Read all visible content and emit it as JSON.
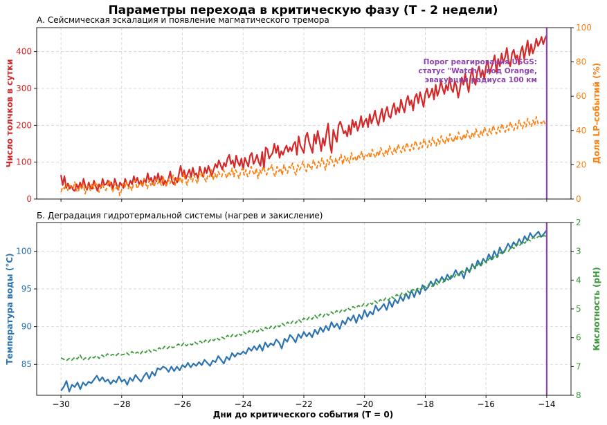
{
  "title": "Параметры перехода в критическую фазу (T - 2 недели)",
  "xlabel": "Дни до критического события (T = 0)",
  "x_ticks": [
    -30,
    -28,
    -26,
    -24,
    -22,
    -20,
    -18,
    -16,
    -14
  ],
  "threshold_x": -14,
  "threshold_color": "#8e44ad",
  "chart_data": [
    {
      "type": "line",
      "title": "А. Сейсмическая эскалация и появление магматического тремора",
      "xlim": [
        -30.8,
        -13.2
      ],
      "x_start": -30,
      "x_end": -14,
      "left_axis": {
        "label": "Число толчков в сутки",
        "color": "#d62728",
        "ylim": [
          0,
          465
        ],
        "ticks": [
          0,
          100,
          200,
          300,
          400
        ]
      },
      "right_axis": {
        "label": "Доля LP-событий (%)",
        "color": "#ff7f0e",
        "ylim": [
          0,
          100
        ],
        "ticks": [
          0,
          20,
          40,
          60,
          80,
          100
        ]
      },
      "series": [
        {
          "axis": "left",
          "color": "#d62728",
          "dashed": false,
          "values": [
            65,
            38,
            62,
            30,
            42,
            28,
            35,
            25,
            22,
            40,
            28,
            45,
            30,
            55,
            35,
            25,
            45,
            30,
            28,
            50,
            35,
            22,
            40,
            30,
            55,
            38,
            40,
            50,
            35,
            45,
            28,
            55,
            40,
            25,
            45,
            38,
            30,
            55,
            42,
            35,
            50,
            40,
            62,
            45,
            58,
            40,
            50,
            35,
            55,
            45,
            70,
            48,
            58,
            40,
            62,
            48,
            70,
            45,
            62,
            38,
            50,
            42,
            55,
            75,
            48,
            40,
            58,
            45,
            68,
            90,
            62,
            78,
            55,
            68,
            80,
            60,
            85,
            65,
            70,
            55,
            88,
            72,
            60,
            85,
            70,
            90,
            75,
            62,
            80,
            95,
            85,
            105,
            92,
            80,
            98,
            88,
            110,
            120,
            95,
            105,
            85,
            118,
            100,
            90,
            110,
            80,
            112,
            100,
            88,
            118,
            125,
            95,
            105,
            120,
            100,
            90,
            128,
            82,
            140,
            135,
            110,
            118,
            125,
            150,
            125,
            145,
            112,
            130,
            120,
            135,
            145,
            128,
            140,
            130,
            148,
            155,
            120,
            170,
            145,
            135,
            125,
            168,
            180,
            155,
            140,
            125,
            175,
            150,
            185,
            160,
            130,
            165,
            145,
            178,
            205,
            150,
            125,
            188,
            170,
            155,
            200,
            210,
            195,
            178,
            185,
            170,
            200,
            175,
            215,
            195,
            210,
            185,
            200,
            225,
            195,
            210,
            218,
            195,
            230,
            205,
            220,
            240,
            215,
            200,
            225,
            245,
            210,
            235,
            250,
            225,
            220,
            245,
            260,
            230,
            248,
            235,
            270,
            250,
            235,
            265,
            280,
            255,
            268,
            240,
            275,
            285,
            260,
            290,
            270,
            250,
            285,
            300,
            275,
            285,
            300,
            270,
            310,
            280,
            295,
            320,
            300,
            285,
            310,
            295,
            330,
            300,
            290,
            320,
            305,
            275,
            300,
            330,
            310,
            340,
            315,
            290,
            330,
            355,
            320,
            310,
            345,
            360,
            330,
            350,
            325,
            360,
            375,
            340,
            355,
            370,
            390,
            345,
            380,
            360,
            395,
            370,
            385,
            410,
            375,
            360,
            395,
            405,
            380,
            390,
            365,
            400,
            415,
            380,
            405,
            430,
            390,
            420,
            395,
            410,
            435,
            415,
            425,
            440,
            420,
            435,
            445
          ]
        },
        {
          "axis": "right",
          "color": "#ff7f0e",
          "dashed": true,
          "values": [
            4,
            7,
            6,
            9,
            5,
            8,
            7,
            6,
            10,
            5,
            4,
            8,
            6,
            9,
            3,
            7,
            8,
            5,
            9,
            6,
            10,
            8,
            4,
            7,
            9,
            6,
            5,
            8,
            11,
            7,
            4,
            9,
            6,
            8,
            2,
            5,
            9,
            7,
            10,
            6,
            8,
            5,
            9,
            11,
            6,
            8,
            10,
            7,
            12,
            9,
            6,
            11,
            8,
            10,
            7,
            12,
            9,
            11,
            8,
            13,
            10,
            7,
            12,
            9,
            11,
            14,
            8,
            12,
            10,
            13,
            9,
            15,
            11,
            8,
            13,
            12,
            10,
            14,
            11,
            9,
            15,
            13,
            16,
            12,
            10,
            14,
            13,
            17,
            11,
            15,
            12,
            16,
            14,
            13,
            17,
            15,
            12,
            16,
            14,
            18,
            13,
            17,
            15,
            12,
            16,
            18,
            14,
            17,
            13,
            15,
            19,
            16,
            14,
            18,
            12,
            17,
            15,
            19,
            16,
            14,
            18,
            17,
            20,
            15,
            13,
            19,
            16,
            18,
            14,
            20,
            17,
            15,
            19,
            18,
            21,
            16,
            14,
            20,
            17,
            19,
            22,
            18,
            16,
            21,
            19,
            17,
            23,
            20,
            18,
            22,
            19,
            24,
            21,
            17,
            23,
            20,
            25,
            22,
            19,
            24,
            21,
            23,
            26,
            20,
            25,
            22,
            24,
            21,
            27,
            23,
            25,
            22,
            26,
            24,
            28,
            23,
            26,
            25,
            27,
            24,
            29,
            26,
            24,
            28,
            25,
            30,
            27,
            25,
            29,
            26,
            31,
            28,
            26,
            30,
            27,
            32,
            29,
            27,
            31,
            28,
            33,
            30,
            28,
            32,
            29,
            34,
            31,
            29,
            33,
            30,
            35,
            32,
            30,
            34,
            31,
            36,
            33,
            31,
            35,
            32,
            37,
            34,
            32,
            36,
            33,
            38,
            35,
            33,
            37,
            34,
            39,
            36,
            34,
            38,
            35,
            40,
            37,
            35,
            39,
            36,
            41,
            38,
            36,
            40,
            37,
            42,
            39,
            37,
            41,
            38,
            43,
            40,
            38,
            42,
            39,
            44,
            41,
            39,
            43,
            40,
            45,
            42,
            40,
            44,
            41,
            46,
            43,
            41,
            45,
            42,
            47,
            44,
            42,
            46,
            43,
            48,
            44,
            45,
            44,
            46,
            44,
            45
          ]
        }
      ],
      "annotation": [
        "Порог реагирования USGS:",
        "статус \"Watch\", код Orange,",
        "эвакуация радиуса 100 км"
      ]
    },
    {
      "type": "line",
      "title": "Б. Деградация гидротермальной системы (нагрев и закисление)",
      "xlim": [
        -30.8,
        -13.2
      ],
      "x_start": -30,
      "x_end": -14,
      "left_axis": {
        "label": "Температура воды (°С)",
        "color": "#2b73b0",
        "ylim": [
          80.9,
          103.8
        ],
        "ticks": [
          85,
          90,
          95,
          100
        ]
      },
      "right_axis": {
        "label": "Кислотность (pH)",
        "color": "#3a9a3a",
        "ylim": [
          8,
          2
        ],
        "inverted": true,
        "ticks": [
          2,
          3,
          4,
          5,
          6,
          7,
          8
        ]
      },
      "series": [
        {
          "axis": "left",
          "color": "#2b73b0",
          "dashed": false,
          "values": [
            81.5,
            82.0,
            82.8,
            81.4,
            82.3,
            82.0,
            82.6,
            81.7,
            82.6,
            82.2,
            82.7,
            82.5,
            83.0,
            83.5,
            82.8,
            83.3,
            82.7,
            83.0,
            82.4,
            82.9,
            82.6,
            83.4,
            82.7,
            83.0,
            82.3,
            83.2,
            82.8,
            83.6,
            83.1,
            82.7,
            83.4,
            83.9,
            83.1,
            84.0,
            83.5,
            84.5,
            84.3,
            84.7,
            84.5,
            84.0,
            84.7,
            84.1,
            84.7,
            84.2,
            84.9,
            84.6,
            85.2,
            84.6,
            85.1,
            84.8,
            85.3,
            84.9,
            85.6,
            85.2,
            84.8,
            85.5,
            85.3,
            86.1,
            85.6,
            85.1,
            86.0,
            85.6,
            86.5,
            86.0,
            86.5,
            86.3,
            86.7,
            86.4,
            87.2,
            86.8,
            87.4,
            86.9,
            87.6,
            86.8,
            87.9,
            87.3,
            87.8,
            87.5,
            88.3,
            87.9,
            87.1,
            88.4,
            88.0,
            88.9,
            88.5,
            87.9,
            89.0,
            88.5,
            89.3,
            88.7,
            89.2,
            88.6,
            89.6,
            89.0,
            89.9,
            89.3,
            90.1,
            89.5,
            90.6,
            89.9,
            90.4,
            89.7,
            90.8,
            90.3,
            91.2,
            90.8,
            91.5,
            90.5,
            91.6,
            91.0,
            92.2,
            91.3,
            92.0,
            91.6,
            92.8,
            92.1,
            92.5,
            93.0,
            92.2,
            93.4,
            92.6,
            93.6,
            93.1,
            94.0,
            93.4,
            94.4,
            93.7,
            94.8,
            93.9,
            95.0,
            94.3,
            95.5,
            94.8,
            95.2,
            96.0,
            95.4,
            96.3,
            95.8,
            96.6,
            96.0,
            96.9,
            96.3,
            96.7,
            97.5,
            96.8,
            97.3,
            96.4,
            97.8,
            97.2,
            98.3,
            97.7,
            98.8,
            98.1,
            99.0,
            98.5,
            99.6,
            98.9,
            100.0,
            99.2,
            100.5,
            99.7,
            100.2,
            101.0,
            100.4,
            101.2,
            100.7,
            101.6,
            101.0,
            102.0,
            101.4,
            102.4,
            101.8,
            102.2,
            102.6,
            101.9,
            102.3,
            102.8
          ]
        },
        {
          "axis": "right",
          "color": "#3a9a3a",
          "dashed": true,
          "values": [
            6.7,
            6.75,
            6.8,
            6.72,
            6.78,
            6.68,
            6.74,
            6.6,
            6.78,
            6.7,
            6.76,
            6.65,
            6.7,
            6.62,
            6.72,
            6.6,
            6.68,
            6.56,
            6.62,
            6.58,
            6.64,
            6.55,
            6.6,
            6.58,
            6.52,
            6.6,
            6.48,
            6.56,
            6.5,
            6.58,
            6.45,
            6.52,
            6.4,
            6.5,
            6.42,
            6.46,
            6.35,
            6.42,
            6.3,
            6.38,
            6.28,
            6.35,
            6.3,
            6.22,
            6.3,
            6.18,
            6.28,
            6.2,
            6.25,
            6.15,
            6.22,
            6.12,
            6.2,
            6.08,
            6.16,
            6.04,
            6.1,
            6.0,
            6.08,
            5.98,
            6.04,
            5.92,
            6.0,
            5.88,
            5.96,
            5.85,
            5.92,
            5.8,
            5.88,
            5.76,
            5.84,
            5.72,
            5.8,
            5.68,
            5.76,
            5.64,
            5.72,
            5.6,
            5.68,
            5.56,
            5.62,
            5.5,
            5.58,
            5.46,
            5.54,
            5.42,
            5.5,
            5.36,
            5.46,
            5.32,
            5.4,
            5.28,
            5.36,
            5.22,
            5.32,
            5.18,
            5.28,
            5.14,
            5.22,
            5.1,
            5.18,
            5.06,
            5.14,
            5.02,
            5.08,
            4.96,
            5.04,
            4.92,
            4.98,
            4.88,
            4.94,
            4.82,
            4.9,
            4.78,
            4.84,
            4.72,
            4.8,
            4.68,
            4.74,
            4.62,
            4.7,
            4.56,
            4.64,
            4.5,
            4.58,
            4.44,
            4.52,
            4.38,
            4.46,
            4.32,
            4.4,
            4.26,
            4.34,
            4.2,
            4.28,
            4.12,
            4.22,
            4.06,
            4.16,
            4.0,
            4.08,
            3.92,
            4.0,
            3.84,
            3.92,
            3.76,
            3.84,
            3.68,
            3.76,
            3.6,
            3.66,
            3.5,
            3.58,
            3.42,
            3.5,
            3.32,
            3.4,
            3.24,
            3.3,
            3.14,
            3.2,
            3.04,
            3.1,
            2.94,
            3.0,
            2.84,
            2.9,
            2.74,
            2.82,
            2.66,
            2.72,
            2.58,
            2.64,
            2.52,
            2.56,
            2.48,
            2.5,
            2.46,
            2.48
          ]
        }
      ]
    }
  ]
}
